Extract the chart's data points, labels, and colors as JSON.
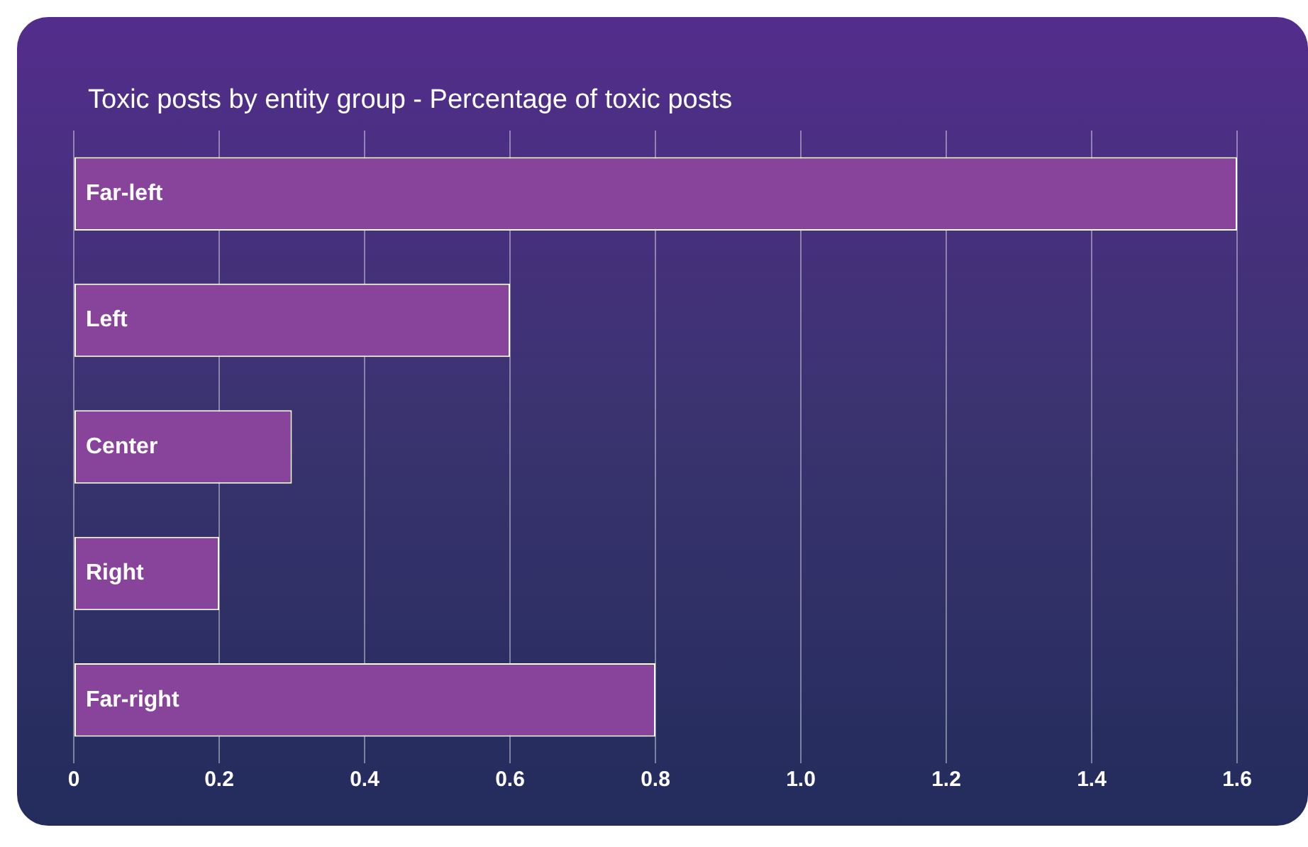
{
  "chart_data": {
    "type": "bar",
    "orientation": "horizontal",
    "title": "Toxic posts by entity group - Percentage of toxic posts",
    "categories": [
      "Far-left",
      "Left",
      "Center",
      "Right",
      "Far-right"
    ],
    "values": [
      1.6,
      0.6,
      0.3,
      0.2,
      0.8
    ],
    "color": "#87449a",
    "xlim": [
      0,
      1.6
    ],
    "xticks": [
      0,
      0.2,
      0.4,
      0.6,
      0.8,
      {
        "value": 1,
        "label": "1.0"
      },
      1.2,
      1.4,
      1.6
    ],
    "grid": "x",
    "legend": false
  }
}
